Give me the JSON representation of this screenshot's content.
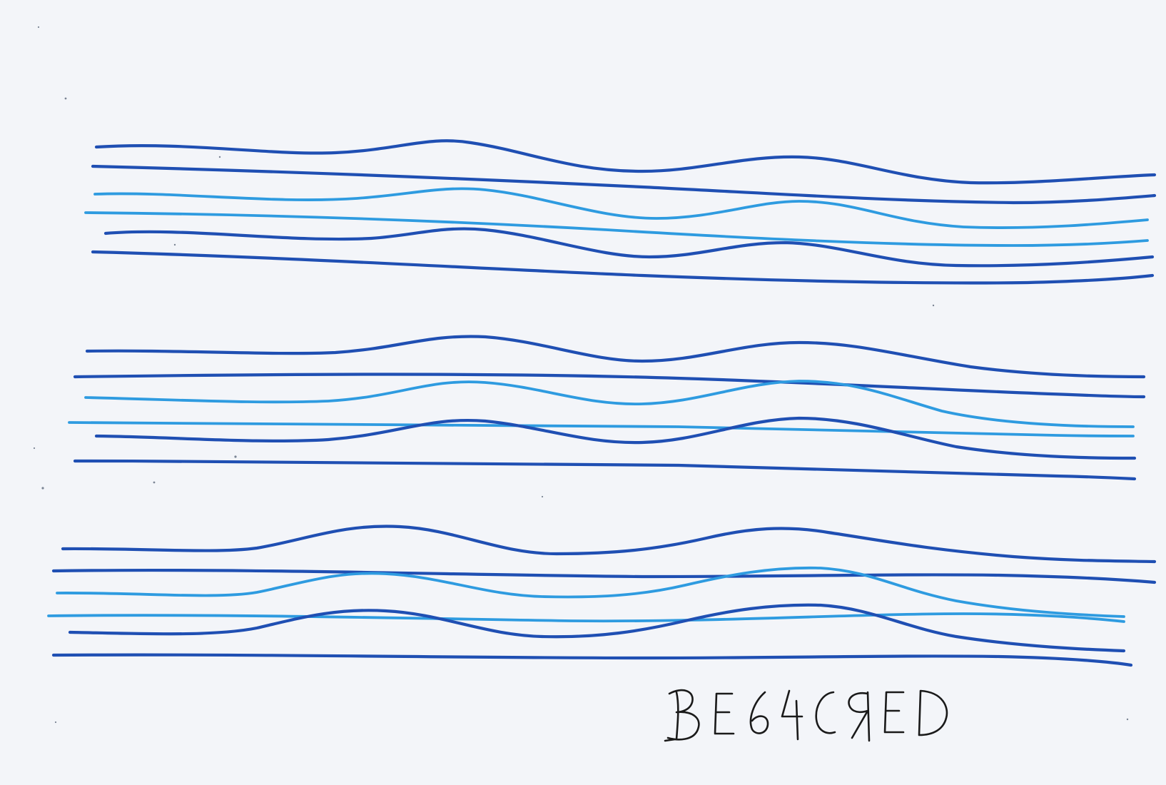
{
  "artwork": {
    "colors": {
      "paper": "#f3f5f9",
      "dark_blue": "#1f4fb3",
      "light_blue": "#2e9be0",
      "ink": "#1a1a1a"
    },
    "signature_text": "BE64CRED"
  }
}
